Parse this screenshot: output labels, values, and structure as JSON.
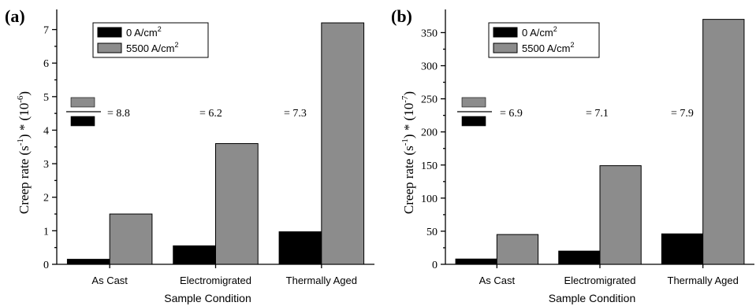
{
  "colors": {
    "series_0": "#000000",
    "series_1": "#8c8c8c",
    "axis": "#000000"
  },
  "chart_data": [
    {
      "type": "bar",
      "panel_label": "(a)",
      "categories": [
        "As Cast",
        "Electromigrated",
        "Thermally Aged"
      ],
      "series": [
        {
          "name": "0 A/cm",
          "name_sup": "2",
          "values": [
            0.15,
            0.55,
            0.97
          ]
        },
        {
          "name": "5500 A/cm",
          "name_sup": "2",
          "values": [
            1.5,
            3.6,
            7.2
          ]
        }
      ],
      "xlabel": "Sample Condition",
      "ylabel": {
        "base": "Creep rate (s",
        "sup1": "-1",
        "mid": ") * (10",
        "sup2": "-6",
        "end": ")"
      },
      "ylim": [
        0,
        7.6
      ],
      "yticks": [
        0,
        1,
        2,
        3,
        4,
        5,
        6,
        7
      ],
      "legend_position": "top-left",
      "ratio_annotations": [
        "= 8.8",
        "= 6.2",
        "= 7.3"
      ],
      "grid": false
    },
    {
      "type": "bar",
      "panel_label": "(b)",
      "categories": [
        "As Cast",
        "Electromigrated",
        "Thermally Aged"
      ],
      "series": [
        {
          "name": "0 A/cm",
          "name_sup": "2",
          "values": [
            8,
            20,
            46
          ]
        },
        {
          "name": "5500 A/cm",
          "name_sup": "2",
          "values": [
            45,
            149,
            370
          ]
        }
      ],
      "xlabel": "Sample Condition",
      "ylabel": {
        "base": "Creep rate (s",
        "sup1": "-1",
        "mid": ") * (10",
        "sup2": "-7",
        "end": ")"
      },
      "ylim": [
        0,
        385
      ],
      "yticks": [
        0,
        50,
        100,
        150,
        200,
        250,
        300,
        350
      ],
      "legend_position": "top-left",
      "ratio_annotations": [
        "= 6.9",
        "= 7.1",
        "= 7.9"
      ],
      "grid": false
    }
  ]
}
